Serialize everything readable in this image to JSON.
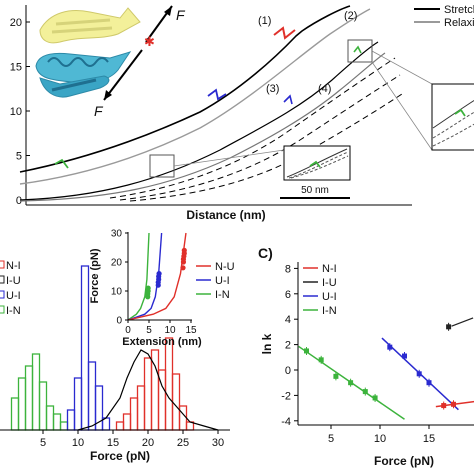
{
  "panel_a": {
    "xlabel": "Distance (nm)",
    "yticks": [
      "0",
      "5",
      "10",
      "15",
      "20"
    ],
    "legend": [
      "Stretching",
      "Relaxing"
    ],
    "trace_labels": [
      "(1)",
      "(2)",
      "(3)",
      "(4)"
    ],
    "force_symbol": "F",
    "scalebar_label": "50 nm"
  },
  "panel_b": {
    "xlabel": "Force (pN)",
    "xticks": [
      "5",
      "10",
      "15",
      "20",
      "25",
      "30"
    ],
    "legend": [
      "N-I",
      "I-U",
      "U-I",
      "I-N"
    ],
    "inset": {
      "xlabel": "Extension (nm)",
      "ylabel": "Force (pN)",
      "xticks": [
        "0",
        "5",
        "10",
        "15"
      ],
      "yticks": [
        "0",
        "10",
        "20",
        "30"
      ],
      "legend": [
        "N-U",
        "U-I",
        "I-N"
      ]
    }
  },
  "panel_c": {
    "letter": "C)",
    "xlabel": "Force (pN)",
    "ylabel": "ln k",
    "xticks": [
      "5",
      "10",
      "15"
    ],
    "yticks": [
      "8",
      "6",
      "4",
      "2",
      "0",
      "-2",
      "-4"
    ],
    "legend": [
      "N-I",
      "I-U",
      "U-I",
      "I-N"
    ]
  },
  "colors": {
    "N-I": "#e0302a",
    "I-U": "#222222",
    "U-I": "#2a2ad0",
    "I-N": "#3cb33c",
    "stretch": "#000000",
    "relax": "#9a9a9a"
  },
  "chart_data": [
    {
      "type": "line",
      "panel": "a",
      "xlabel": "Distance (nm)",
      "ylim": [
        0,
        22
      ],
      "series": [
        {
          "name": "Stretching",
          "note": "trace (1)"
        },
        {
          "name": "Relaxing",
          "note": "trace (2)"
        }
      ]
    },
    {
      "type": "bar",
      "panel": "b",
      "xlabel": "Force (pN)",
      "xlim": [
        0,
        30
      ],
      "bin_width": 1,
      "series": [
        {
          "name": "I-N",
          "bins": [
            [
              1,
              8
            ],
            [
              2,
              13
            ],
            [
              3,
              16
            ],
            [
              4,
              19
            ],
            [
              5,
              12
            ],
            [
              6,
              6
            ],
            [
              7,
              4
            ],
            [
              8,
              2
            ]
          ]
        },
        {
          "name": "U-I",
          "bins": [
            [
              9,
              5
            ],
            [
              10,
              13
            ],
            [
              11,
              41
            ],
            [
              12,
              17
            ],
            [
              13,
              11
            ],
            [
              14,
              3
            ]
          ]
        },
        {
          "name": "N-I",
          "bins": [
            [
              16,
              2
            ],
            [
              17,
              4
            ],
            [
              18,
              8
            ],
            [
              19,
              11
            ],
            [
              20,
              18
            ],
            [
              21,
              20
            ],
            [
              22,
              15
            ],
            [
              23,
              23
            ],
            [
              24,
              14
            ],
            [
              25,
              6
            ],
            [
              26,
              2
            ]
          ]
        }
      ],
      "black_curve": [
        [
          10,
          0
        ],
        [
          12,
          1
        ],
        [
          14,
          3
        ],
        [
          16,
          8
        ],
        [
          17,
          13
        ],
        [
          18,
          17
        ],
        [
          19,
          20
        ],
        [
          20,
          19
        ],
        [
          21,
          16
        ],
        [
          22,
          11
        ],
        [
          23,
          8
        ],
        [
          24,
          6
        ],
        [
          25,
          4
        ],
        [
          26,
          2
        ],
        [
          28,
          1
        ],
        [
          30,
          0
        ]
      ]
    },
    {
      "type": "line",
      "panel": "b-inset",
      "xlabel": "Extension (nm)",
      "ylabel": "Force (pN)",
      "xlim": [
        0,
        15
      ],
      "ylim": [
        0,
        30
      ],
      "series": [
        {
          "name": "I-N",
          "x": [
            0,
            1,
            2,
            3,
            4,
            4.5,
            5
          ],
          "y": [
            0,
            1,
            2,
            4,
            8,
            14,
            30
          ]
        },
        {
          "name": "U-I",
          "x": [
            0,
            2,
            4,
            5.5,
            6.5,
            7.3,
            8
          ],
          "y": [
            0,
            1,
            2,
            4,
            8,
            16,
            30
          ]
        },
        {
          "name": "N-U",
          "x": [
            0,
            3,
            6,
            9,
            11,
            12.5,
            13.8
          ],
          "y": [
            0,
            1,
            2,
            4,
            8,
            16,
            30
          ]
        }
      ],
      "points": [
        {
          "name": "I-N",
          "x": [
            4.7,
            4.7,
            4.8,
            4.8
          ],
          "y": [
            8,
            9,
            10,
            11
          ]
        },
        {
          "name": "U-I",
          "x": [
            7.2,
            7.2,
            7.3,
            7.3,
            7.4
          ],
          "y": [
            12,
            13,
            14,
            15,
            16
          ]
        },
        {
          "name": "N-U",
          "x": [
            13.1,
            13.2,
            13.2,
            13.3,
            13.4,
            13.4
          ],
          "y": [
            18,
            20,
            21,
            22,
            23,
            24
          ]
        }
      ]
    },
    {
      "type": "scatter",
      "panel": "c",
      "xlabel": "Force (pN)",
      "ylabel": "ln k",
      "ylim": [
        -4.5,
        8
      ],
      "series": [
        {
          "name": "I-N",
          "x": [
            2.5,
            4,
            5.5,
            7,
            8.5,
            9.5
          ],
          "y": [
            1.5,
            0.8,
            -0.5,
            -1.0,
            -1.7,
            -2.2
          ]
        },
        {
          "name": "U-I",
          "x": [
            11,
            12.5,
            14,
            15
          ],
          "y": [
            1.8,
            1.1,
            -0.3,
            -1.0
          ]
        },
        {
          "name": "N-I",
          "x": [
            16.5,
            17.5
          ],
          "y": [
            -2.8,
            -2.7
          ]
        },
        {
          "name": "I-U",
          "x": [
            17
          ],
          "y": [
            3.4
          ]
        }
      ]
    }
  ]
}
